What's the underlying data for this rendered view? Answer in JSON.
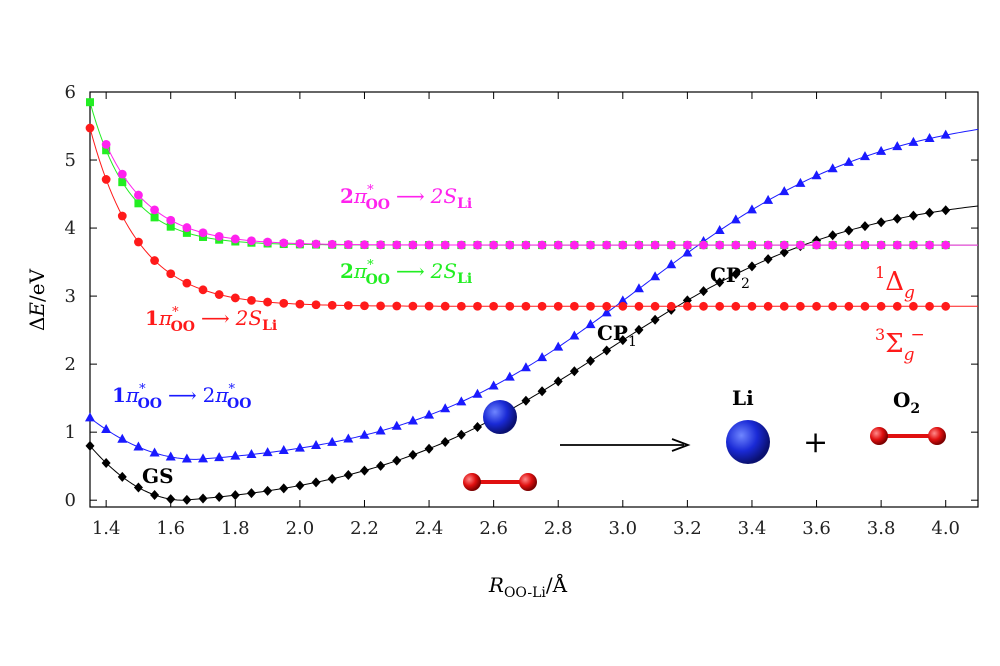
{
  "chart_data": {
    "type": "line",
    "xlim": [
      1.35,
      4.1
    ],
    "ylim": [
      -0.1,
      6.0
    ],
    "xticks": [
      "1.4",
      "1.6",
      "1.8",
      "2.0",
      "2.2",
      "2.4",
      "2.6",
      "2.8",
      "3.0",
      "3.2",
      "3.4",
      "3.6",
      "3.8",
      "4.0"
    ],
    "yticks": [
      "0",
      "1",
      "2",
      "3",
      "4",
      "5",
      "6"
    ],
    "xlabel": {
      "var": "R",
      "sub": "OO-Li",
      "unit": "/Å"
    },
    "ylabel": {
      "delta": "Δ",
      "var": "E",
      "unit": "/eV"
    },
    "grid": false,
    "series": [
      {
        "key": "gs",
        "color": "#000000",
        "marker": "diamond",
        "x_start": 1.35,
        "x_end": 4.0,
        "step": 0.05,
        "model": "gs"
      },
      {
        "key": "pi_pi",
        "color": "#1a1aff",
        "marker": "triangle",
        "x_start": 1.35,
        "x_end": 4.0,
        "step": 0.05,
        "model": "pipi"
      },
      {
        "key": "pi_s1",
        "color": "#ff1a1a",
        "marker": "circle",
        "x_start": 1.35,
        "x_end": 4.0,
        "step": 0.05,
        "model": "exp",
        "plateau": 2.85,
        "amp": 2.62,
        "rate": 6.8
      },
      {
        "key": "pi_s2",
        "color": "#22ee22",
        "marker": "square",
        "x_start": 1.35,
        "x_end": 4.0,
        "step": 0.05,
        "model": "exp",
        "plateau": 3.75,
        "amp": 2.1,
        "rate": 8.2
      },
      {
        "key": "pi_s3",
        "color": "#ff22ee",
        "marker": "circle",
        "x_start": 1.4,
        "x_end": 4.0,
        "step": 0.05,
        "model": "exp",
        "plateau": 3.75,
        "amp": 2.1,
        "rate": 7.0
      }
    ],
    "labels": {
      "gs": "GS",
      "cp1": {
        "base": "CP",
        "sub": "1"
      },
      "cp2": {
        "base": "CP",
        "sub": "2"
      },
      "pi_pi": {
        "n": "1",
        "pi": "π",
        "star": "*",
        "from": "OO",
        "arrow": "⟶",
        "to_n": "2",
        "to_pi": "π",
        "to_star": "*",
        "to_sub": "OO"
      },
      "pi_s1": {
        "n": "1",
        "pi": "π",
        "star": "*",
        "from": "OO",
        "arrow": "⟶",
        "to": "2S",
        "to_sub": "Li"
      },
      "pi_s2": {
        "n": "2",
        "pi": "π",
        "star": "*",
        "from": "OO",
        "arrow": "⟶",
        "to": "2S",
        "to_sub": "Li"
      },
      "pi_s3": {
        "n": "2",
        "pi": "π",
        "star": "*",
        "from": "OO",
        "arrow": "⟶",
        "to": "2S",
        "to_sub": "Li"
      },
      "delta_g": {
        "sup": "1",
        "sym": "Δ",
        "sub": "g"
      },
      "sigma_g": {
        "sup": "3",
        "sym": "Σ",
        "sub": "g",
        "sup2": "−"
      },
      "li": "Li",
      "o2": {
        "base": "O",
        "sub": "2"
      },
      "plus": "+"
    },
    "colors": {
      "blue_atom": "#1a2ad6",
      "red_atom": "#e01010",
      "axis": "#000000"
    }
  }
}
